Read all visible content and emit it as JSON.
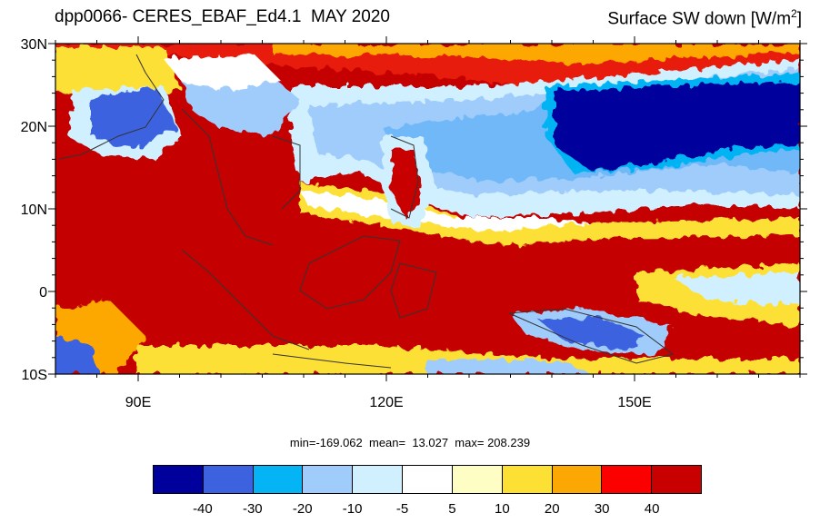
{
  "header": {
    "title": "dpp0066- CERES_EBAF_Ed4.1  MAY 2020",
    "variable": "Surface SW down [W/m",
    "variable_sup": "2",
    "variable_end": "]"
  },
  "map": {
    "lon_range": [
      80,
      170
    ],
    "lat_range": [
      -10,
      30
    ],
    "lat_labels": [
      "30N",
      "20N",
      "10N",
      "0",
      "10S"
    ],
    "lon_labels": [
      "90E",
      "120E",
      "150E"
    ],
    "colors": {
      "background_field": "#c40000",
      "coast": "#444444"
    }
  },
  "stats": {
    "text": "min=-169.062  mean=  13.027  max= 208.239"
  },
  "colorbar": {
    "colors": [
      "#00009c",
      "#3d62e0",
      "#04b4f4",
      "#a0ccfc",
      "#d0f0ff",
      "#ffffff",
      "#fdfdc4",
      "#fde034",
      "#fca804",
      "#fc0000",
      "#c80000"
    ],
    "labels": [
      "-40",
      "-30",
      "-20",
      "-10",
      "-5",
      "5",
      "10",
      "20",
      "30",
      "40"
    ]
  }
}
